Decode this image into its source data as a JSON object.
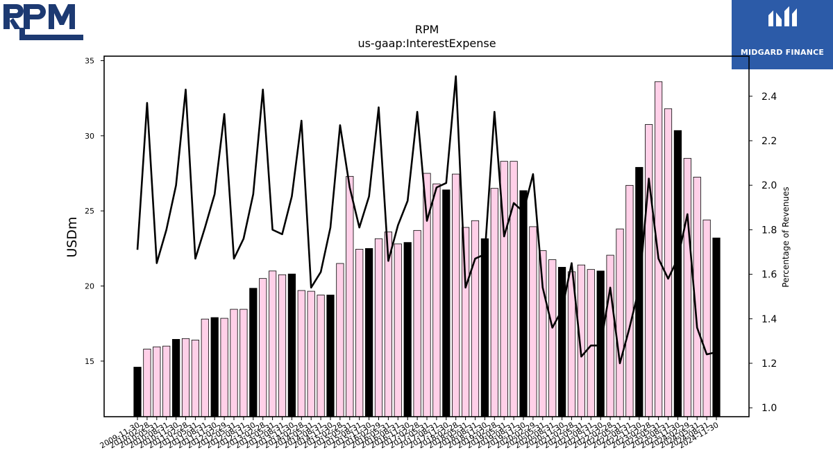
{
  "brand": {
    "left_logo": "RPM",
    "right_logo_name": "MIDGARD FINANCE",
    "right_logo_bg": "#2c5ba8"
  },
  "chart_data": {
    "type": "bar",
    "title": "RPM",
    "subtitle": "us-gaap:InterestExpense",
    "ylabel": "USDm",
    "y2label": "Percentage of Revenues",
    "ylim": [
      11.3,
      35.3
    ],
    "y2lim": [
      0.96,
      2.58
    ],
    "yticks": [
      15,
      20,
      25,
      30,
      35
    ],
    "y2ticks": [
      "1.0",
      "1.2",
      "1.4",
      "1.6",
      "1.8",
      "2.0",
      "2.2",
      "2.4"
    ],
    "colors": {
      "bar_pink": "#ffd0e8",
      "bar_black": "#000000",
      "line": "#000000"
    },
    "categories": [
      "2009-11-30",
      "2010-02-28",
      "2010-05-31",
      "2010-08-31",
      "2010-11-30",
      "2011-02-28",
      "2011-05-31",
      "2011-08-31",
      "2011-11-30",
      "2012-02-29",
      "2012-05-31",
      "2012-08-31",
      "2012-11-30",
      "2013-02-28",
      "2013-05-31",
      "2013-08-31",
      "2013-11-30",
      "2014-02-28",
      "2014-05-31",
      "2014-08-31",
      "2014-11-30",
      "2015-02-28",
      "2015-05-31",
      "2015-08-31",
      "2015-11-30",
      "2016-02-29",
      "2016-05-31",
      "2016-08-31",
      "2016-11-30",
      "2017-02-28",
      "2017-05-31",
      "2017-08-31",
      "2017-11-30",
      "2018-02-28",
      "2018-05-31",
      "2018-08-31",
      "2018-11-30",
      "2019-02-28",
      "2019-05-31",
      "2019-08-31",
      "2019-11-30",
      "2020-02-29",
      "2020-05-31",
      "2020-08-31",
      "2020-11-30",
      "2021-02-28",
      "2021-05-31",
      "2021-08-31",
      "2021-11-30",
      "2022-02-28",
      "2022-05-31",
      "2022-08-31",
      "2022-11-30",
      "2023-02-28",
      "2023-05-31",
      "2023-08-31",
      "2023-11-30",
      "2024-02-29",
      "2024-05-31",
      "2024-08-31",
      "2024-11-30"
    ],
    "tick_labels": [
      "2009-11-30",
      "2010-02-28",
      "2010-05-31",
      "2010-08-31",
      "2010-11-30",
      "2011-02-28",
      "2011-05-31",
      "2011-08-31",
      "2011-11-30",
      "2012-02-29",
      "2012-05-31",
      "2012-08-31",
      "2012-11-30",
      "2013-02-28",
      "2013-05-31",
      "2013-08-31",
      "2013-11-30",
      "2014-02-28",
      "2014-05-31",
      "2014-08-31",
      "2014-11-30",
      "2015-02-28",
      "2015-05-31",
      "2015-08-31",
      "2015-11-30",
      "2016-02-29",
      "2016-05-31",
      "2016-08-31",
      "2016-11-30",
      "2017-02-28",
      "2017-05-31",
      "2017-08-31",
      "2017-11-30",
      "2018-02-28",
      "2018-05-31",
      "2018-08-31",
      "2018-11-30",
      "2019-02-28",
      "2019-05-31",
      "2019-08-31",
      "2019-11-30",
      "2020-02-29",
      "2020-05-31",
      "2020-08-31",
      "2020-11-30",
      "2021-02-28",
      "2021-05-31",
      "2021-08-31",
      "2021-11-30",
      "2022-02-28",
      "2022-05-31",
      "2022-08-31",
      "2022-11-30",
      "2023-02-28",
      "2023-05-31",
      "2023-08-31",
      "2023-11-30",
      "2024-02-29",
      "2024-05-31",
      "2024-08-31",
      "2024-11-30"
    ],
    "series": [
      {
        "kind": "bar",
        "values": [
          14.6,
          15.8,
          15.95,
          16.0,
          16.45,
          16.5,
          16.4,
          17.8,
          17.9,
          17.85,
          18.45,
          18.45,
          19.85,
          20.5,
          21.0,
          20.75,
          20.8,
          19.7,
          19.65,
          19.4,
          19.4,
          21.5,
          27.3,
          22.45,
          22.5,
          23.15,
          23.6,
          22.8,
          22.9,
          23.7,
          27.5,
          26.8,
          26.4,
          27.45,
          23.9,
          24.35,
          23.15,
          26.5,
          28.3,
          28.3,
          26.35,
          23.95,
          22.35,
          21.75,
          21.25,
          20.95,
          21.4,
          21.1,
          21.0,
          22.05,
          23.8,
          26.7,
          27.9,
          30.75,
          33.6,
          31.8,
          30.35,
          28.5,
          27.25,
          24.4,
          23.2
        ],
        "highlight": [
          0,
          4,
          8,
          12,
          16,
          20,
          24,
          28,
          32,
          36,
          40,
          44,
          48,
          52,
          56,
          60
        ]
      },
      {
        "kind": "line",
        "axis": "right",
        "values": [
          1.71,
          2.37,
          1.65,
          1.8,
          2.0,
          2.43,
          1.67,
          1.81,
          1.96,
          2.32,
          1.67,
          1.76,
          1.96,
          2.43,
          1.8,
          1.78,
          1.95,
          2.29,
          1.54,
          1.61,
          1.81,
          2.27,
          1.99,
          1.81,
          1.95,
          2.35,
          1.66,
          1.82,
          1.93,
          2.33,
          1.84,
          1.99,
          2.01,
          2.49,
          1.54,
          1.67,
          1.69,
          2.33,
          1.77,
          1.92,
          1.88,
          2.05,
          1.54,
          1.36,
          1.44,
          1.65,
          1.23,
          1.28,
          1.28,
          1.54,
          1.2,
          1.36,
          1.54,
          2.03,
          1.67,
          1.58,
          1.67,
          1.87,
          1.36,
          1.24,
          1.25
        ]
      }
    ]
  }
}
